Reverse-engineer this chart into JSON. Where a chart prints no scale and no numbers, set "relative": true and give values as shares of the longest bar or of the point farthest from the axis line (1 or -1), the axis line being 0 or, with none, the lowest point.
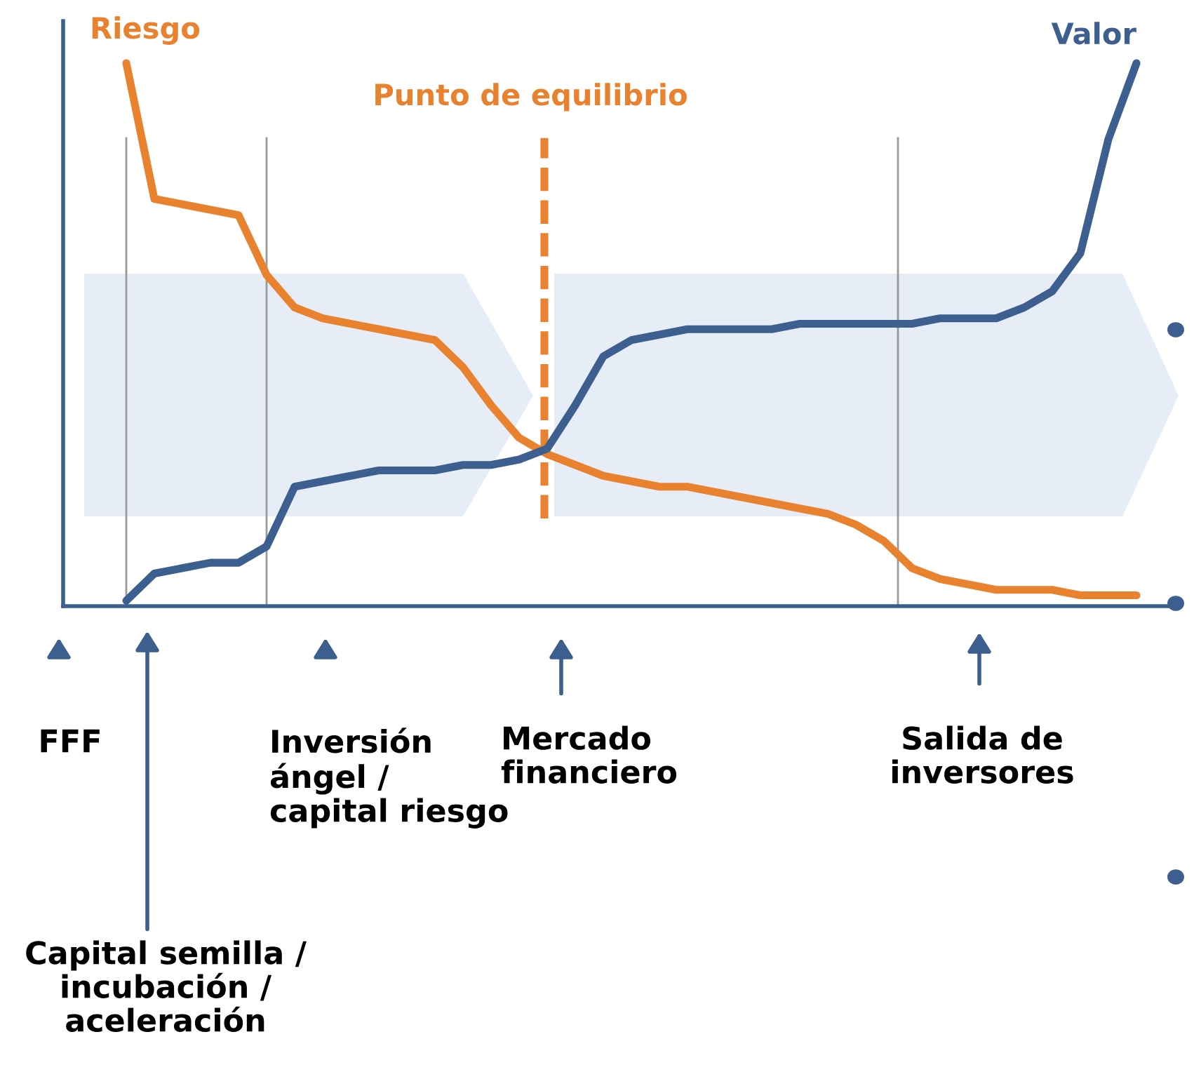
{
  "chart_data": {
    "type": "line",
    "relative": true,
    "categories": [
      null,
      null,
      null,
      null,
      null,
      null,
      null,
      null,
      null,
      null,
      null,
      null,
      null,
      null,
      null,
      null,
      null,
      null,
      null,
      null,
      null,
      null,
      null,
      null,
      null,
      null,
      null,
      null,
      null,
      null,
      null,
      null,
      null,
      null,
      null,
      null,
      null
    ],
    "series": [
      {
        "name": "Riesgo",
        "color": "#e8822e",
        "values": [
          1.0,
          0.75,
          0.74,
          0.73,
          0.72,
          0.61,
          0.55,
          0.53,
          0.52,
          0.51,
          0.5,
          0.49,
          0.44,
          0.37,
          0.31,
          0.28,
          0.26,
          0.24,
          0.23,
          0.22,
          0.22,
          0.21,
          0.2,
          0.19,
          0.18,
          0.17,
          0.15,
          0.12,
          0.07,
          0.05,
          0.04,
          0.03,
          0.03,
          0.03,
          0.02,
          0.02,
          0.02
        ]
      },
      {
        "name": "Valor",
        "color": "#3d5f8f",
        "values": [
          0.01,
          0.06,
          0.07,
          0.08,
          0.08,
          0.11,
          0.22,
          0.23,
          0.24,
          0.25,
          0.25,
          0.25,
          0.26,
          0.26,
          0.27,
          0.29,
          0.37,
          0.46,
          0.49,
          0.5,
          0.51,
          0.51,
          0.51,
          0.51,
          0.52,
          0.52,
          0.52,
          0.52,
          0.52,
          0.53,
          0.53,
          0.53,
          0.55,
          0.58,
          0.65,
          0.86,
          1.0
        ]
      }
    ],
    "annotations": [
      "FFF",
      "Inversión\nángel /\ncapital riesgo",
      "Mercado\nfinanciero",
      "Salida de\ninversores",
      "Capital semilla /\nincubación /\naceleración",
      "Punto de equilibrio"
    ],
    "grid": false,
    "marker": "none",
    "line_style": "solid"
  }
}
